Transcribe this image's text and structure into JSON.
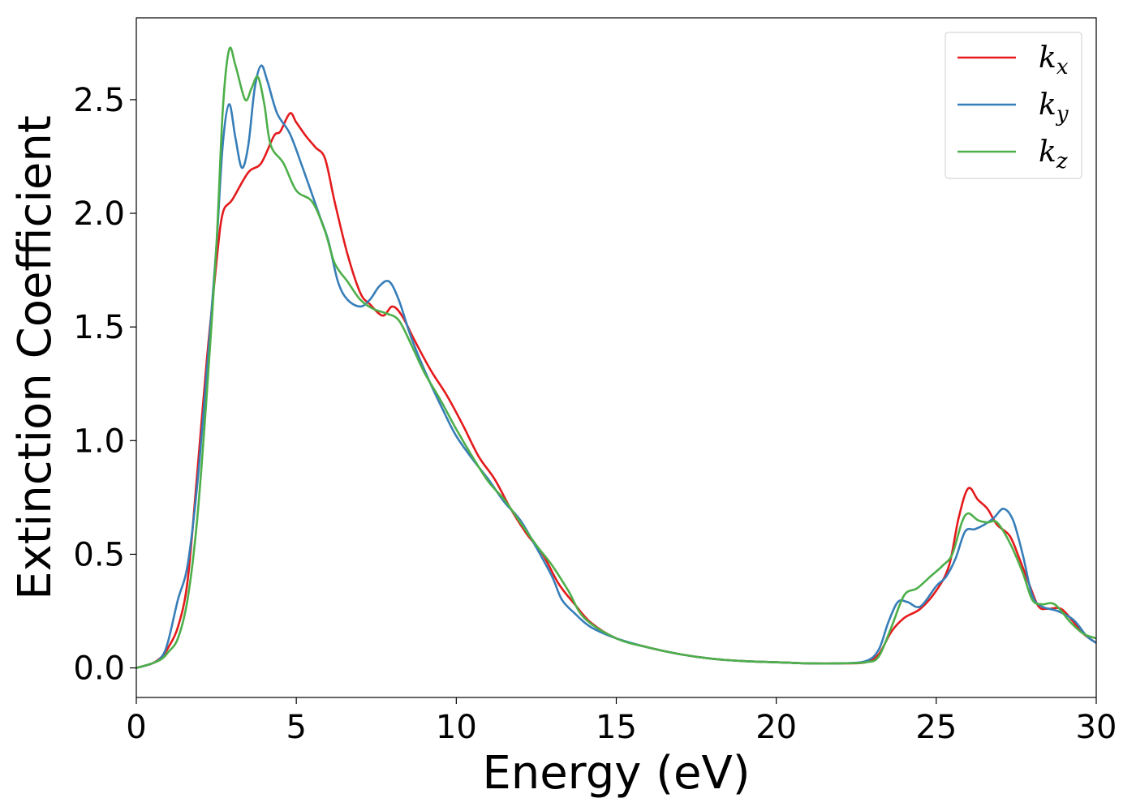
{
  "chart_data": {
    "type": "line",
    "title": "",
    "xlabel": "Energy (eV)",
    "ylabel": "Extinction Coefficient",
    "xlim": [
      0,
      30
    ],
    "ylim": [
      -0.13,
      2.86
    ],
    "xticks": [
      0,
      5,
      10,
      15,
      20,
      25,
      30
    ],
    "xtick_labels": [
      "0",
      "5",
      "10",
      "15",
      "20",
      "25",
      "30"
    ],
    "yticks": [
      0.0,
      0.5,
      1.0,
      1.5,
      2.0,
      2.5
    ],
    "ytick_labels": [
      "0.0",
      "0.5",
      "1.0",
      "1.5",
      "2.0",
      "2.5"
    ],
    "grid": false,
    "legend_position": "top-right",
    "series": [
      {
        "name": "k_x",
        "label_base": "k",
        "label_sub": "x",
        "color": "#e41a1c",
        "points": [
          [
            0,
            0
          ],
          [
            0.5,
            0.02
          ],
          [
            0.8,
            0.05
          ],
          [
            1.0,
            0.09
          ],
          [
            1.3,
            0.18
          ],
          [
            1.6,
            0.38
          ],
          [
            1.9,
            0.85
          ],
          [
            2.2,
            1.35
          ],
          [
            2.5,
            1.78
          ],
          [
            2.7,
            2.0
          ],
          [
            3.0,
            2.06
          ],
          [
            3.5,
            2.18
          ],
          [
            3.9,
            2.22
          ],
          [
            4.3,
            2.34
          ],
          [
            4.5,
            2.36
          ],
          [
            4.8,
            2.44
          ],
          [
            5.0,
            2.4
          ],
          [
            5.3,
            2.34
          ],
          [
            5.6,
            2.29
          ],
          [
            5.9,
            2.24
          ],
          [
            6.2,
            2.05
          ],
          [
            6.6,
            1.82
          ],
          [
            7.0,
            1.65
          ],
          [
            7.3,
            1.6
          ],
          [
            7.7,
            1.55
          ],
          [
            8.0,
            1.59
          ],
          [
            8.3,
            1.55
          ],
          [
            8.7,
            1.44
          ],
          [
            9.2,
            1.31
          ],
          [
            9.7,
            1.2
          ],
          [
            10.2,
            1.07
          ],
          [
            10.7,
            0.93
          ],
          [
            11.2,
            0.83
          ],
          [
            11.7,
            0.7
          ],
          [
            12.2,
            0.59
          ],
          [
            12.7,
            0.5
          ],
          [
            13.2,
            0.37
          ],
          [
            13.7,
            0.28
          ],
          [
            14.2,
            0.2
          ],
          [
            15.0,
            0.13
          ],
          [
            16.0,
            0.09
          ],
          [
            17.0,
            0.06
          ],
          [
            18.0,
            0.04
          ],
          [
            19.0,
            0.03
          ],
          [
            20.0,
            0.025
          ],
          [
            21.0,
            0.02
          ],
          [
            22.0,
            0.02
          ],
          [
            22.8,
            0.025
          ],
          [
            23.2,
            0.06
          ],
          [
            23.6,
            0.16
          ],
          [
            24.0,
            0.22
          ],
          [
            24.5,
            0.26
          ],
          [
            25.0,
            0.34
          ],
          [
            25.4,
            0.45
          ],
          [
            25.7,
            0.66
          ],
          [
            26.0,
            0.79
          ],
          [
            26.3,
            0.74
          ],
          [
            26.6,
            0.7
          ],
          [
            26.9,
            0.63
          ],
          [
            27.3,
            0.58
          ],
          [
            27.6,
            0.48
          ],
          [
            27.9,
            0.37
          ],
          [
            28.2,
            0.27
          ],
          [
            28.5,
            0.26
          ],
          [
            28.9,
            0.26
          ],
          [
            29.3,
            0.2
          ],
          [
            29.6,
            0.15
          ],
          [
            30.0,
            0.11
          ]
        ]
      },
      {
        "name": "k_y",
        "label_base": "k",
        "label_sub": "y",
        "color": "#377eb8",
        "points": [
          [
            0,
            0
          ],
          [
            0.5,
            0.02
          ],
          [
            0.8,
            0.05
          ],
          [
            1.0,
            0.12
          ],
          [
            1.3,
            0.3
          ],
          [
            1.6,
            0.45
          ],
          [
            1.9,
            0.8
          ],
          [
            2.2,
            1.3
          ],
          [
            2.5,
            1.85
          ],
          [
            2.7,
            2.3
          ],
          [
            2.9,
            2.48
          ],
          [
            3.1,
            2.33
          ],
          [
            3.3,
            2.2
          ],
          [
            3.5,
            2.3
          ],
          [
            3.7,
            2.55
          ],
          [
            3.9,
            2.65
          ],
          [
            4.1,
            2.58
          ],
          [
            4.4,
            2.44
          ],
          [
            4.8,
            2.35
          ],
          [
            5.2,
            2.2
          ],
          [
            5.7,
            2.0
          ],
          [
            6.0,
            1.88
          ],
          [
            6.3,
            1.7
          ],
          [
            6.6,
            1.62
          ],
          [
            7.0,
            1.59
          ],
          [
            7.3,
            1.62
          ],
          [
            7.6,
            1.68
          ],
          [
            7.9,
            1.7
          ],
          [
            8.2,
            1.62
          ],
          [
            8.6,
            1.45
          ],
          [
            9.1,
            1.28
          ],
          [
            9.6,
            1.13
          ],
          [
            10.0,
            1.02
          ],
          [
            10.5,
            0.92
          ],
          [
            11.0,
            0.83
          ],
          [
            11.5,
            0.73
          ],
          [
            12.0,
            0.65
          ],
          [
            12.5,
            0.53
          ],
          [
            13.0,
            0.4
          ],
          [
            13.3,
            0.3
          ],
          [
            13.7,
            0.24
          ],
          [
            14.2,
            0.18
          ],
          [
            15.0,
            0.13
          ],
          [
            16.0,
            0.09
          ],
          [
            17.0,
            0.06
          ],
          [
            18.0,
            0.04
          ],
          [
            19.0,
            0.03
          ],
          [
            20.0,
            0.025
          ],
          [
            21.0,
            0.02
          ],
          [
            22.0,
            0.02
          ],
          [
            22.8,
            0.03
          ],
          [
            23.2,
            0.08
          ],
          [
            23.5,
            0.2
          ],
          [
            23.8,
            0.29
          ],
          [
            24.1,
            0.29
          ],
          [
            24.5,
            0.27
          ],
          [
            25.0,
            0.36
          ],
          [
            25.3,
            0.4
          ],
          [
            25.6,
            0.48
          ],
          [
            25.9,
            0.6
          ],
          [
            26.2,
            0.61
          ],
          [
            26.5,
            0.63
          ],
          [
            26.8,
            0.66
          ],
          [
            27.1,
            0.7
          ],
          [
            27.4,
            0.65
          ],
          [
            27.7,
            0.5
          ],
          [
            28.0,
            0.32
          ],
          [
            28.3,
            0.27
          ],
          [
            28.8,
            0.25
          ],
          [
            29.3,
            0.21
          ],
          [
            29.7,
            0.14
          ],
          [
            30.0,
            0.11
          ]
        ]
      },
      {
        "name": "k_z",
        "label_base": "k",
        "label_sub": "z",
        "color": "#4daf4a",
        "points": [
          [
            0,
            0
          ],
          [
            0.5,
            0.02
          ],
          [
            0.8,
            0.04
          ],
          [
            1.0,
            0.07
          ],
          [
            1.3,
            0.13
          ],
          [
            1.6,
            0.3
          ],
          [
            1.9,
            0.65
          ],
          [
            2.2,
            1.2
          ],
          [
            2.5,
            1.85
          ],
          [
            2.7,
            2.45
          ],
          [
            2.9,
            2.72
          ],
          [
            3.1,
            2.65
          ],
          [
            3.4,
            2.5
          ],
          [
            3.6,
            2.55
          ],
          [
            3.8,
            2.6
          ],
          [
            4.0,
            2.48
          ],
          [
            4.2,
            2.3
          ],
          [
            4.6,
            2.22
          ],
          [
            5.0,
            2.1
          ],
          [
            5.5,
            2.05
          ],
          [
            5.9,
            1.92
          ],
          [
            6.2,
            1.78
          ],
          [
            6.6,
            1.7
          ],
          [
            7.0,
            1.62
          ],
          [
            7.4,
            1.58
          ],
          [
            7.8,
            1.56
          ],
          [
            8.2,
            1.53
          ],
          [
            8.6,
            1.42
          ],
          [
            9.0,
            1.3
          ],
          [
            9.5,
            1.18
          ],
          [
            10.0,
            1.05
          ],
          [
            10.5,
            0.93
          ],
          [
            11.0,
            0.82
          ],
          [
            11.5,
            0.74
          ],
          [
            12.0,
            0.64
          ],
          [
            12.5,
            0.54
          ],
          [
            13.0,
            0.45
          ],
          [
            13.5,
            0.34
          ],
          [
            14.0,
            0.22
          ],
          [
            15.0,
            0.13
          ],
          [
            16.0,
            0.09
          ],
          [
            17.0,
            0.06
          ],
          [
            18.0,
            0.04
          ],
          [
            19.0,
            0.03
          ],
          [
            20.0,
            0.025
          ],
          [
            21.0,
            0.02
          ],
          [
            22.0,
            0.02
          ],
          [
            22.8,
            0.025
          ],
          [
            23.2,
            0.05
          ],
          [
            23.6,
            0.18
          ],
          [
            24.0,
            0.32
          ],
          [
            24.4,
            0.35
          ],
          [
            24.8,
            0.4
          ],
          [
            25.2,
            0.45
          ],
          [
            25.5,
            0.5
          ],
          [
            25.8,
            0.64
          ],
          [
            26.0,
            0.68
          ],
          [
            26.3,
            0.65
          ],
          [
            26.6,
            0.64
          ],
          [
            26.9,
            0.64
          ],
          [
            27.3,
            0.55
          ],
          [
            27.7,
            0.42
          ],
          [
            28.0,
            0.3
          ],
          [
            28.3,
            0.28
          ],
          [
            28.7,
            0.28
          ],
          [
            29.2,
            0.2
          ],
          [
            29.6,
            0.15
          ],
          [
            30.0,
            0.13
          ]
        ]
      }
    ]
  }
}
